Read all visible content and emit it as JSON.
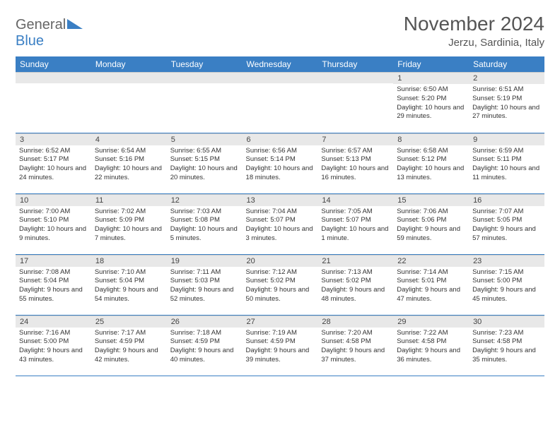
{
  "logo": {
    "part1": "General",
    "part2": "Blue"
  },
  "title": "November 2024",
  "subtitle": "Jerzu, Sardinia, Italy",
  "colors": {
    "header_bg": "#3a7fc4",
    "header_text": "#ffffff",
    "daynum_bg": "#e8e8e8",
    "border": "#3a7fc4",
    "text": "#333333"
  },
  "weekdays": [
    "Sunday",
    "Monday",
    "Tuesday",
    "Wednesday",
    "Thursday",
    "Friday",
    "Saturday"
  ],
  "weeks": [
    [
      null,
      null,
      null,
      null,
      null,
      {
        "n": "1",
        "sr": "6:50 AM",
        "ss": "5:20 PM",
        "dl": "10 hours and 29 minutes."
      },
      {
        "n": "2",
        "sr": "6:51 AM",
        "ss": "5:19 PM",
        "dl": "10 hours and 27 minutes."
      }
    ],
    [
      {
        "n": "3",
        "sr": "6:52 AM",
        "ss": "5:17 PM",
        "dl": "10 hours and 24 minutes."
      },
      {
        "n": "4",
        "sr": "6:54 AM",
        "ss": "5:16 PM",
        "dl": "10 hours and 22 minutes."
      },
      {
        "n": "5",
        "sr": "6:55 AM",
        "ss": "5:15 PM",
        "dl": "10 hours and 20 minutes."
      },
      {
        "n": "6",
        "sr": "6:56 AM",
        "ss": "5:14 PM",
        "dl": "10 hours and 18 minutes."
      },
      {
        "n": "7",
        "sr": "6:57 AM",
        "ss": "5:13 PM",
        "dl": "10 hours and 16 minutes."
      },
      {
        "n": "8",
        "sr": "6:58 AM",
        "ss": "5:12 PM",
        "dl": "10 hours and 13 minutes."
      },
      {
        "n": "9",
        "sr": "6:59 AM",
        "ss": "5:11 PM",
        "dl": "10 hours and 11 minutes."
      }
    ],
    [
      {
        "n": "10",
        "sr": "7:00 AM",
        "ss": "5:10 PM",
        "dl": "10 hours and 9 minutes."
      },
      {
        "n": "11",
        "sr": "7:02 AM",
        "ss": "5:09 PM",
        "dl": "10 hours and 7 minutes."
      },
      {
        "n": "12",
        "sr": "7:03 AM",
        "ss": "5:08 PM",
        "dl": "10 hours and 5 minutes."
      },
      {
        "n": "13",
        "sr": "7:04 AM",
        "ss": "5:07 PM",
        "dl": "10 hours and 3 minutes."
      },
      {
        "n": "14",
        "sr": "7:05 AM",
        "ss": "5:07 PM",
        "dl": "10 hours and 1 minute."
      },
      {
        "n": "15",
        "sr": "7:06 AM",
        "ss": "5:06 PM",
        "dl": "9 hours and 59 minutes."
      },
      {
        "n": "16",
        "sr": "7:07 AM",
        "ss": "5:05 PM",
        "dl": "9 hours and 57 minutes."
      }
    ],
    [
      {
        "n": "17",
        "sr": "7:08 AM",
        "ss": "5:04 PM",
        "dl": "9 hours and 55 minutes."
      },
      {
        "n": "18",
        "sr": "7:10 AM",
        "ss": "5:04 PM",
        "dl": "9 hours and 54 minutes."
      },
      {
        "n": "19",
        "sr": "7:11 AM",
        "ss": "5:03 PM",
        "dl": "9 hours and 52 minutes."
      },
      {
        "n": "20",
        "sr": "7:12 AM",
        "ss": "5:02 PM",
        "dl": "9 hours and 50 minutes."
      },
      {
        "n": "21",
        "sr": "7:13 AM",
        "ss": "5:02 PM",
        "dl": "9 hours and 48 minutes."
      },
      {
        "n": "22",
        "sr": "7:14 AM",
        "ss": "5:01 PM",
        "dl": "9 hours and 47 minutes."
      },
      {
        "n": "23",
        "sr": "7:15 AM",
        "ss": "5:00 PM",
        "dl": "9 hours and 45 minutes."
      }
    ],
    [
      {
        "n": "24",
        "sr": "7:16 AM",
        "ss": "5:00 PM",
        "dl": "9 hours and 43 minutes."
      },
      {
        "n": "25",
        "sr": "7:17 AM",
        "ss": "4:59 PM",
        "dl": "9 hours and 42 minutes."
      },
      {
        "n": "26",
        "sr": "7:18 AM",
        "ss": "4:59 PM",
        "dl": "9 hours and 40 minutes."
      },
      {
        "n": "27",
        "sr": "7:19 AM",
        "ss": "4:59 PM",
        "dl": "9 hours and 39 minutes."
      },
      {
        "n": "28",
        "sr": "7:20 AM",
        "ss": "4:58 PM",
        "dl": "9 hours and 37 minutes."
      },
      {
        "n": "29",
        "sr": "7:22 AM",
        "ss": "4:58 PM",
        "dl": "9 hours and 36 minutes."
      },
      {
        "n": "30",
        "sr": "7:23 AM",
        "ss": "4:58 PM",
        "dl": "9 hours and 35 minutes."
      }
    ]
  ],
  "labels": {
    "sunrise": "Sunrise:",
    "sunset": "Sunset:",
    "daylight": "Daylight:"
  }
}
